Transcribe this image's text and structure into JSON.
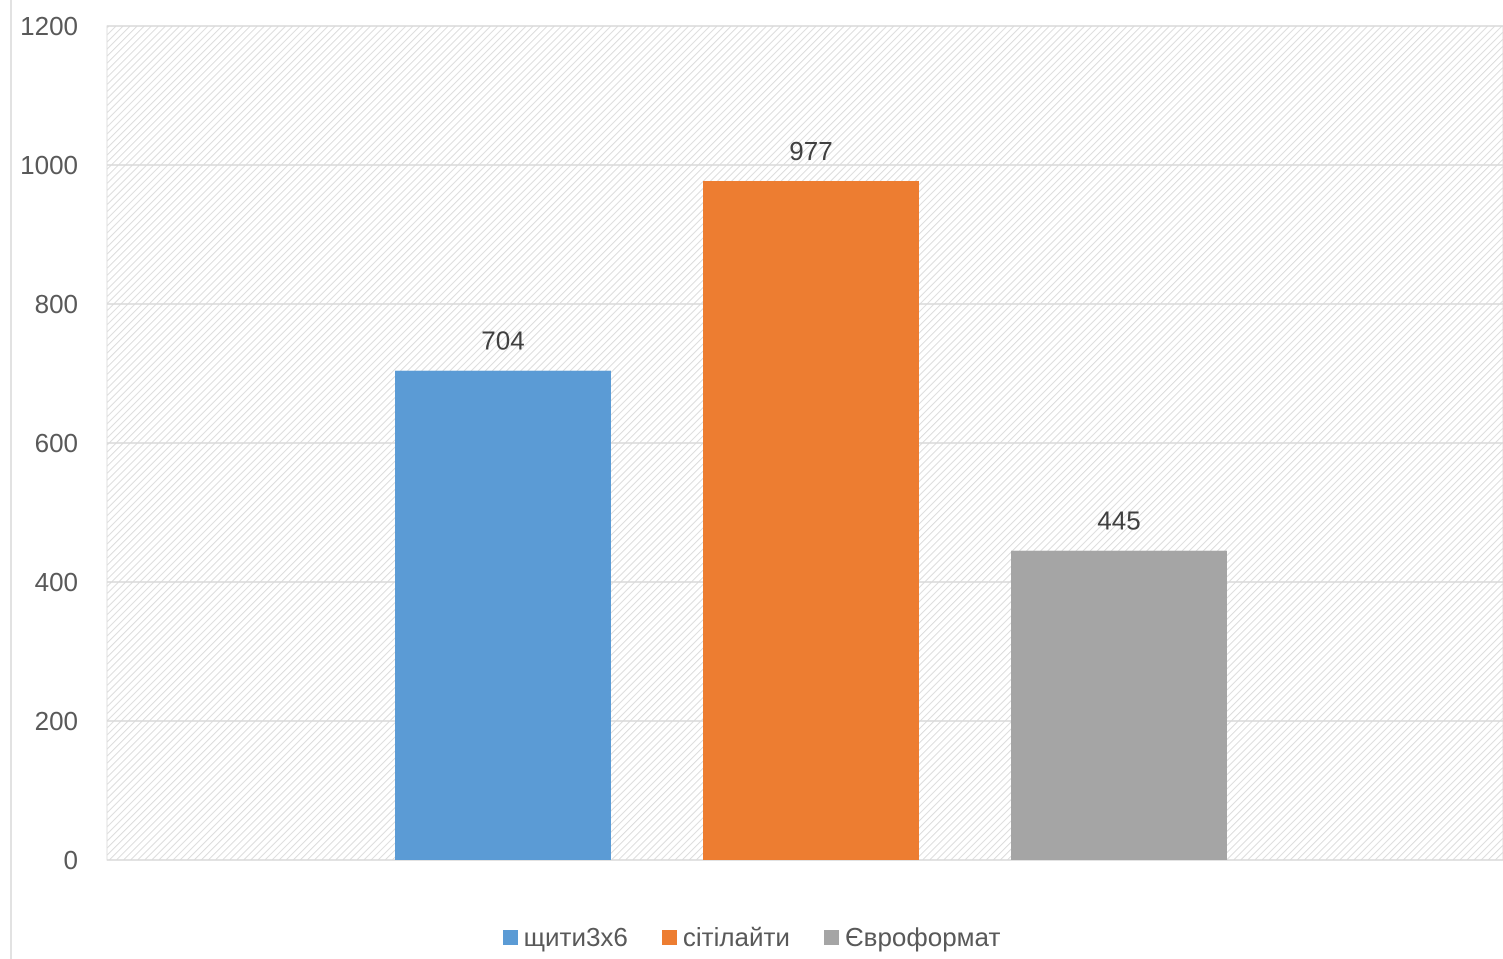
{
  "chart_data": {
    "type": "bar",
    "categories": [
      "щити3х6",
      "сітілайти",
      "Євроформат"
    ],
    "values": [
      704,
      977,
      445
    ],
    "colors": [
      "#5B9BD5",
      "#ED7D31",
      "#A5A5A5"
    ],
    "data_labels": [
      "704",
      "977",
      "445"
    ],
    "ylim": [
      0,
      1200
    ],
    "y_ticks": [
      0,
      200,
      400,
      600,
      800,
      1000,
      1200
    ],
    "y_tick_labels": [
      "0",
      "200",
      "400",
      "600",
      "800",
      "1000",
      "1200"
    ],
    "grid": true,
    "legend_position": "bottom",
    "legend": [
      {
        "label": "щити3х6",
        "color": "#5B9BD5"
      },
      {
        "label": "сітілайти",
        "color": "#ED7D31"
      },
      {
        "label": "Євроформат",
        "color": "#A5A5A5"
      }
    ],
    "title": "",
    "xlabel": "",
    "ylabel": ""
  }
}
